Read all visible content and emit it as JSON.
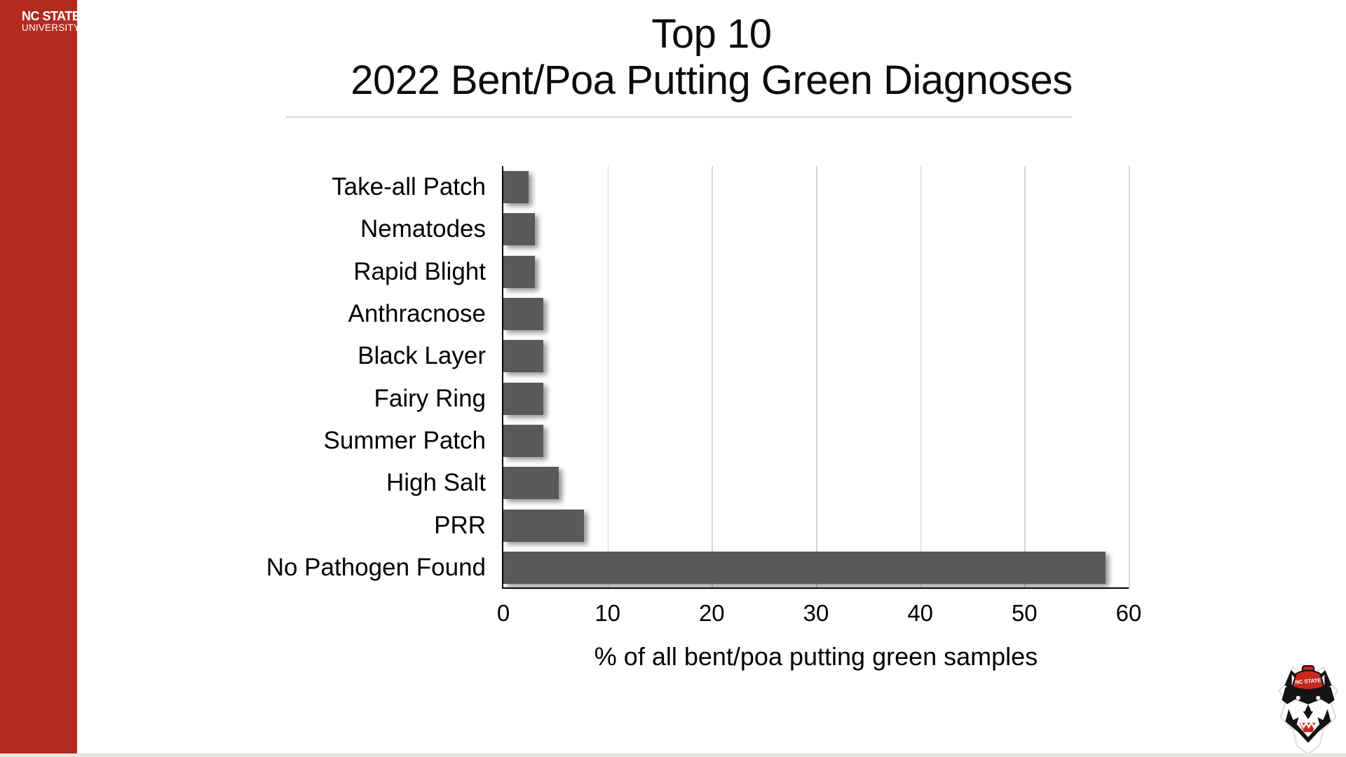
{
  "sidebar": {
    "color": "#B32B20",
    "logo_line1": "NC STATE",
    "logo_line2": "UNIVERSITY"
  },
  "title": {
    "line1": "Top 10",
    "line2": "2022 Bent/Poa Putting Green Diagnoses"
  },
  "footer_logo": {
    "hat_text": "NC STATE"
  },
  "chart_data": {
    "type": "bar",
    "orientation": "horizontal",
    "title": "Top 10 2022 Bent/Poa Putting Green Diagnoses",
    "categories": [
      "Take-all Patch",
      "Nematodes",
      "Rapid Blight",
      "Anthracnose",
      "Black Layer",
      "Fairy Ring",
      "Summer Patch",
      "High Salt",
      "PRR",
      "No Pathogen Found"
    ],
    "values": [
      2.4,
      3.0,
      3.0,
      3.8,
      3.8,
      3.8,
      3.8,
      5.3,
      7.7,
      57.8
    ],
    "xlabel": "% of all bent/poa putting green samples",
    "ylabel": "",
    "xlim": [
      0,
      60
    ],
    "xticks": [
      0,
      10,
      20,
      30,
      40,
      50,
      60
    ],
    "grid": true,
    "legend": false,
    "bar_color": "#595959",
    "gridline_color": "#D5D5D5"
  }
}
